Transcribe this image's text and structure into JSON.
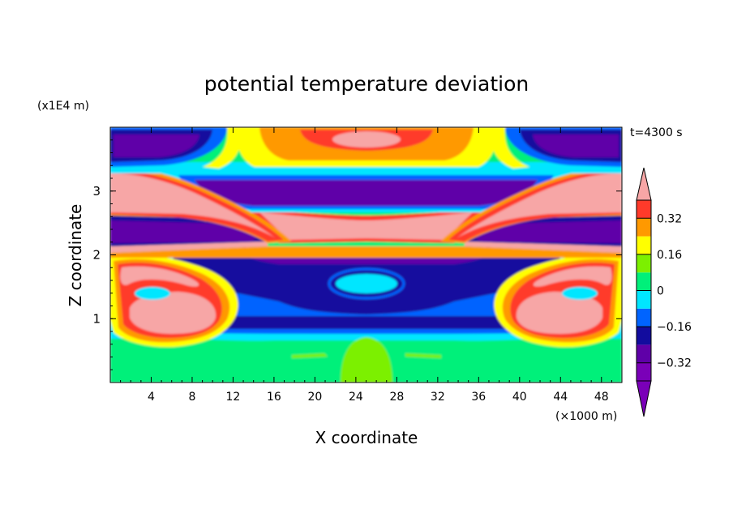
{
  "chart_data": {
    "type": "heatmap",
    "title": "potential temperature deviation",
    "xlabel": "X coordinate",
    "ylabel": "Z coordinate",
    "x_unit": "(×1000 m)",
    "y_unit": "(x1E4 m)",
    "time_label": "t=4300 s",
    "xlim": [
      0,
      50
    ],
    "ylim": [
      0,
      4
    ],
    "x_ticks": [
      4,
      8,
      12,
      16,
      20,
      24,
      28,
      32,
      36,
      40,
      44,
      48
    ],
    "y_ticks": [
      1,
      2,
      3
    ],
    "colorbar": {
      "levels": [
        -0.4,
        -0.32,
        -0.24,
        -0.16,
        -0.08,
        0,
        0.08,
        0.16,
        0.24,
        0.32,
        0.4
      ],
      "tick_labels": [
        "0.32",
        "0.16",
        "0",
        "−0.16",
        "−0.32"
      ],
      "tick_values": [
        0.32,
        0.16,
        0,
        -0.16,
        -0.32
      ],
      "colors": [
        "#7a00b8",
        "#5f00a8",
        "#120c9e",
        "#0064ff",
        "#00e6ff",
        "#00f07a",
        "#7cf000",
        "#ffff00",
        "#ff9900",
        "#ff3a2a",
        "#f7a6a6"
      ],
      "extend": "both"
    },
    "regions": [
      {
        "name": "lower background",
        "x": [
          0,
          50
        ],
        "z": [
          0,
          0.8
        ],
        "value": 0.04
      },
      {
        "name": "central warm bump",
        "x": [
          23,
          27
        ],
        "z": [
          0.4,
          0.8
        ],
        "value": 0.12
      },
      {
        "name": "lower cold band",
        "x": [
          9,
          41
        ],
        "z": [
          0.8,
          1.9
        ],
        "value": -0.2
      },
      {
        "name": "central cold core",
        "x": [
          22,
          28
        ],
        "z": [
          1.4,
          1.7
        ],
        "value": -0.12
      },
      {
        "name": "left warm blob",
        "x": [
          2,
          11
        ],
        "z": [
          0.8,
          1.6
        ],
        "value": 0.4
      },
      {
        "name": "right warm blob",
        "x": [
          39,
          48
        ],
        "z": [
          0.8,
          1.6
        ],
        "value": 0.4
      },
      {
        "name": "left cold lens",
        "x": [
          0,
          12
        ],
        "z": [
          2.1,
          2.6
        ],
        "value": -0.4
      },
      {
        "name": "right cold lens",
        "x": [
          38,
          50
        ],
        "z": [
          2.1,
          2.6
        ],
        "value": -0.4
      },
      {
        "name": "central warm layer",
        "x": [
          14,
          36
        ],
        "z": [
          2.2,
          2.6
        ],
        "value": 0.4
      },
      {
        "name": "upper cold band",
        "x": [
          8,
          42
        ],
        "z": [
          2.7,
          3.1
        ],
        "value": -0.4
      },
      {
        "name": "left warm wedge",
        "x": [
          0,
          14
        ],
        "z": [
          2.6,
          3.3
        ],
        "value": 0.4
      },
      {
        "name": "right warm wedge",
        "x": [
          36,
          50
        ],
        "z": [
          2.6,
          3.3
        ],
        "value": 0.4
      },
      {
        "name": "top warm cap",
        "x": [
          18,
          32
        ],
        "z": [
          3.5,
          4.0
        ],
        "value": 0.32
      },
      {
        "name": "top-left cold cell",
        "x": [
          0,
          10
        ],
        "z": [
          3.4,
          4.0
        ],
        "value": -0.36
      },
      {
        "name": "top-right cold cell",
        "x": [
          40,
          50
        ],
        "z": [
          3.4,
          4.0
        ],
        "value": -0.36
      }
    ]
  }
}
